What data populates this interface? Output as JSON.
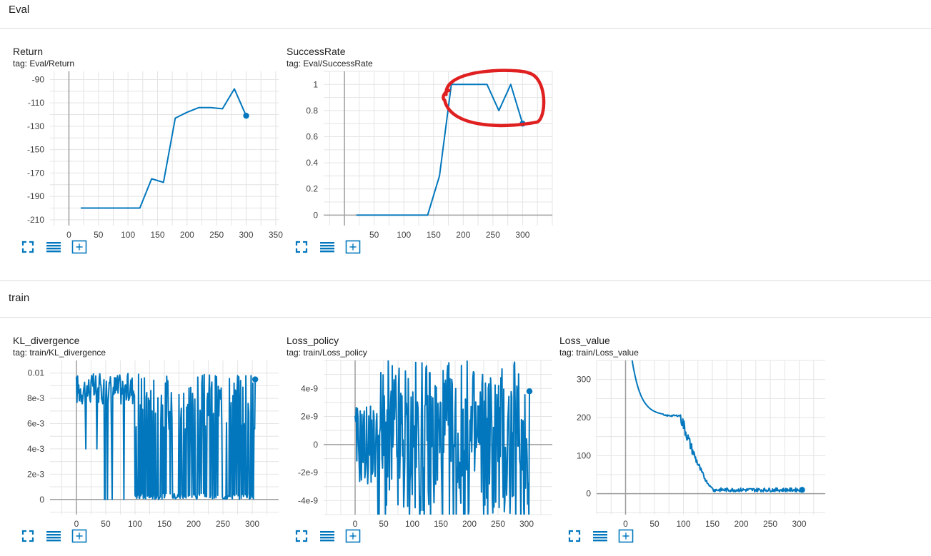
{
  "sections": [
    {
      "title": "Eval"
    },
    {
      "title": "train"
    }
  ],
  "accent_color": "#0277bd",
  "annotation_color": "#e02020",
  "toolbar_icons": [
    "fullscreen-icon",
    "toggle-y-axis-log-icon",
    "fit-domain-icon"
  ],
  "chart_data": [
    {
      "id": "return",
      "type": "line",
      "title": "Return",
      "tag": "tag: Eval/Return",
      "x": [
        20,
        40,
        60,
        80,
        100,
        120,
        140,
        160,
        180,
        200,
        220,
        240,
        260,
        280,
        300
      ],
      "y": [
        -200,
        -200,
        -200,
        -200,
        -200,
        -200,
        -175,
        -178,
        -123,
        -118,
        -114,
        -114,
        -115,
        -98,
        -121
      ],
      "xlim": [
        -32,
        355
      ],
      "ylim": [
        -215,
        -83
      ],
      "xticks": [
        0,
        50,
        100,
        150,
        200,
        250,
        300,
        350
      ],
      "yticks": [
        -90,
        -110,
        -130,
        -150,
        -170,
        -190,
        -210
      ],
      "grid": true
    },
    {
      "id": "successrate",
      "type": "line",
      "title": "SuccessRate",
      "tag": "tag: Eval/SuccessRate",
      "x": [
        20,
        40,
        60,
        80,
        100,
        120,
        140,
        160,
        180,
        200,
        220,
        240,
        260,
        280,
        300
      ],
      "y": [
        0,
        0,
        0,
        0,
        0,
        0,
        0,
        0.3,
        1.0,
        1.0,
        1.0,
        1.0,
        0.8,
        1.0,
        0.7
      ],
      "xlim": [
        -35,
        350
      ],
      "ylim": [
        -0.08,
        1.1
      ],
      "xticks": [
        50,
        100,
        150,
        200,
        250,
        300
      ],
      "yticks": [
        1,
        0.8,
        0.6,
        0.4,
        0.2,
        0
      ],
      "grid": true,
      "annotation": "hand-drawn red ellipse around the plateau at 1.0"
    },
    {
      "id": "kl",
      "type": "line",
      "title": "KL_divergence",
      "tag": "tag: train/KL_divergence",
      "xlim": [
        -45,
        345
      ],
      "ylim": [
        -0.0012,
        0.011
      ],
      "xticks": [
        0,
        50,
        100,
        150,
        200,
        250,
        300
      ],
      "yticks": [
        "0.01",
        "8e-3",
        "6e-3",
        "4e-3",
        "2e-3",
        "0"
      ],
      "ytick_values": [
        0.01,
        0.008,
        0.006,
        0.004,
        0.002,
        0
      ],
      "grid": true,
      "x_range": [
        0,
        305
      ],
      "noise_profile": "high values near 0.008-0.01 for x<100, then rapid oscillation between 0 and 0.01",
      "last_point": [
        305,
        0.0095
      ]
    },
    {
      "id": "policy",
      "type": "line",
      "title": "Loss_policy",
      "tag": "tag: train/Loss_policy",
      "xlim": [
        -55,
        345
      ],
      "ylim": [
        -5e-09,
        6e-09
      ],
      "xticks": [
        0,
        50,
        100,
        150,
        200,
        250,
        300
      ],
      "yticks": [
        "4e-9",
        "2e-9",
        "0",
        "-2e-9",
        "-4e-9"
      ],
      "ytick_values": [
        4e-09,
        2e-09,
        0,
        -2e-09,
        -4e-09
      ],
      "grid": true,
      "x_range": [
        0,
        305
      ],
      "noise_profile": "dense oscillation roughly between -5e-9 and 6e-9",
      "last_point": [
        305,
        3.8e-09
      ]
    },
    {
      "id": "value",
      "type": "line",
      "title": "Loss_value",
      "tag": "tag: train/Loss_value",
      "xlim": [
        -50,
        345
      ],
      "ylim": [
        -55,
        350
      ],
      "xticks": [
        0,
        50,
        100,
        150,
        200,
        250,
        300
      ],
      "yticks": [
        300,
        200,
        100,
        0
      ],
      "grid": true,
      "x_range": [
        10,
        305
      ],
      "shape": "exponential decay from ~350 to ~205 by x=60, plateau to x=95, noisy drop to ~15 by x=150, noisy plateau ~10 to end",
      "last_point": [
        305,
        10
      ]
    }
  ]
}
